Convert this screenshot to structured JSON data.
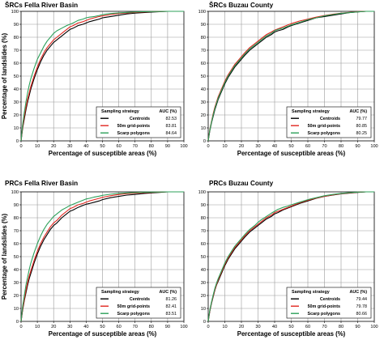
{
  "chart_data": [
    {
      "type": "line",
      "title": "ŠRCs  Fella River Basin",
      "xlabel": "Percentage of susceptible areas (%)",
      "ylabel": "Percentage of landslides (%)",
      "xlim": [
        0,
        100
      ],
      "ylim": [
        0,
        100
      ],
      "xticks": [
        "0",
        "10",
        "20",
        "30",
        "40",
        "50",
        "60",
        "70",
        "80",
        "90",
        "100"
      ],
      "yticks": [
        "0",
        "10",
        "20",
        "30",
        "40",
        "50",
        "60",
        "70",
        "80",
        "90",
        "100"
      ],
      "grid": true,
      "legend_position": "bottom-right",
      "legend_header": [
        "Sampling strategy",
        "AUC (%)"
      ],
      "series": [
        {
          "name": "Centroids",
          "auc": "82.53",
          "color": "#000000",
          "x": [
            0,
            1,
            2,
            3,
            4,
            5,
            6,
            7,
            8,
            10,
            12,
            14,
            16,
            18,
            20,
            22,
            25,
            28,
            30,
            32,
            35,
            38,
            40,
            42,
            45,
            48,
            50,
            55,
            60,
            65,
            70,
            75,
            80,
            85,
            90,
            95,
            100
          ],
          "y": [
            0,
            10,
            17,
            24,
            30,
            35,
            40,
            44,
            48,
            55,
            61,
            66,
            70,
            73,
            76,
            78,
            81,
            84,
            86,
            87,
            89,
            90,
            91,
            92,
            93,
            94,
            95,
            96,
            97,
            98,
            98.6,
            99,
            99.4,
            99.7,
            100,
            100,
            100
          ]
        },
        {
          "name": "50m grid-points",
          "auc": "83.81",
          "color": "#e0261f",
          "x": [
            0,
            1,
            2,
            3,
            4,
            5,
            6,
            7,
            8,
            10,
            12,
            14,
            16,
            18,
            20,
            22,
            25,
            28,
            30,
            32,
            35,
            38,
            40,
            42,
            45,
            48,
            50,
            55,
            60,
            65,
            70,
            75,
            80,
            85,
            90,
            95,
            100
          ],
          "y": [
            0,
            11,
            19,
            26,
            32,
            37,
            42,
            46,
            50,
            57,
            63,
            68,
            72,
            75,
            78,
            80,
            83,
            86,
            88,
            89,
            91,
            92,
            93,
            94,
            95,
            96,
            96.5,
            97.5,
            98.3,
            98.8,
            99.2,
            99.5,
            99.7,
            99.9,
            100,
            100,
            100
          ]
        },
        {
          "name": "Scarp polygons",
          "auc": "84.64",
          "color": "#2ca05a",
          "x": [
            0,
            1,
            2,
            3,
            4,
            5,
            6,
            7,
            8,
            10,
            12,
            14,
            16,
            18,
            20,
            22,
            25,
            28,
            30,
            32,
            35,
            38,
            40,
            42,
            45,
            48,
            50,
            55,
            60,
            65,
            70,
            75,
            80,
            85,
            90,
            95,
            100
          ],
          "y": [
            0,
            13,
            22,
            30,
            37,
            43,
            48,
            52,
            56,
            63,
            68,
            73,
            77,
            80,
            83,
            85,
            87,
            89,
            90,
            91,
            93,
            94,
            95,
            95.5,
            96,
            96.8,
            97.5,
            98.3,
            98.8,
            99.2,
            99.5,
            99.7,
            99.8,
            99.9,
            100,
            100,
            100
          ]
        }
      ]
    },
    {
      "type": "line",
      "title": "ŠRCs  Buzau County",
      "xlabel": "Percentage of susceptible areas (%)",
      "ylabel": "",
      "xlim": [
        0,
        100
      ],
      "ylim": [
        0,
        100
      ],
      "xticks": [
        "0",
        "10",
        "20",
        "30",
        "40",
        "50",
        "60",
        "70",
        "80",
        "90",
        "100"
      ],
      "yticks": [
        "0",
        "10",
        "20",
        "30",
        "40",
        "50",
        "60",
        "70",
        "80",
        "90",
        "100"
      ],
      "grid": true,
      "legend_position": "bottom-right",
      "legend_header": [
        "Sampling strategy",
        "AUC (%)"
      ],
      "series": [
        {
          "name": "Centroids",
          "auc": "79.77",
          "color": "#000000",
          "x": [
            0,
            1,
            2,
            3,
            4,
            5,
            6,
            8,
            10,
            12,
            14,
            16,
            18,
            20,
            22,
            25,
            28,
            30,
            32,
            35,
            38,
            40,
            42,
            45,
            48,
            50,
            55,
            60,
            65,
            70,
            75,
            80,
            85,
            90,
            95,
            100
          ],
          "y": [
            0,
            8,
            14,
            19,
            24,
            28,
            32,
            38,
            44,
            49,
            53,
            57,
            60,
            63,
            66,
            70,
            73,
            75,
            77,
            80,
            82,
            84,
            85,
            86,
            88,
            89,
            91,
            93,
            95,
            96,
            97,
            98,
            99,
            99.6,
            100,
            100
          ]
        },
        {
          "name": "50m grid-points",
          "auc": "80.85",
          "color": "#e0261f",
          "x": [
            0,
            1,
            2,
            3,
            4,
            5,
            6,
            8,
            10,
            12,
            14,
            16,
            18,
            20,
            22,
            25,
            28,
            30,
            32,
            35,
            38,
            40,
            42,
            45,
            48,
            50,
            55,
            60,
            65,
            70,
            75,
            80,
            85,
            90,
            95,
            100
          ],
          "y": [
            0,
            9,
            15,
            21,
            26,
            30,
            34,
            40,
            46,
            51,
            55,
            59,
            62,
            65,
            68,
            72,
            75,
            77,
            79,
            82,
            84,
            85.5,
            86.5,
            88,
            89.5,
            90.5,
            92.5,
            94,
            95.5,
            96.8,
            97.8,
            98.6,
            99.2,
            99.7,
            100,
            100
          ]
        },
        {
          "name": "Scarp polygons",
          "auc": "80.25",
          "color": "#2ca05a",
          "x": [
            0,
            1,
            2,
            3,
            4,
            5,
            6,
            8,
            10,
            12,
            14,
            16,
            18,
            20,
            22,
            25,
            28,
            30,
            32,
            35,
            38,
            40,
            42,
            45,
            48,
            50,
            55,
            60,
            65,
            70,
            75,
            80,
            85,
            90,
            95,
            100
          ],
          "y": [
            0,
            8.5,
            14.5,
            20,
            25,
            29,
            33,
            39,
            45,
            50,
            54,
            58,
            61,
            64,
            67,
            71,
            74,
            76,
            78,
            81,
            83,
            85,
            86,
            87,
            88.5,
            89.5,
            91.5,
            93.5,
            95,
            96.5,
            97.5,
            98.5,
            99,
            99.6,
            100,
            100
          ]
        }
      ]
    },
    {
      "type": "line",
      "title": "PRCs  Fella River Basin",
      "xlabel": "Percentage of susceptible areas (%)",
      "ylabel": "Percentage of landslides (%)",
      "xlim": [
        0,
        100
      ],
      "ylim": [
        0,
        100
      ],
      "xticks": [
        "0",
        "10",
        "20",
        "30",
        "40",
        "50",
        "60",
        "70",
        "80",
        "90",
        "100"
      ],
      "yticks": [
        "0",
        "10",
        "20",
        "30",
        "40",
        "50",
        "60",
        "70",
        "80",
        "90",
        "100"
      ],
      "grid": true,
      "legend_position": "bottom-right",
      "legend_header": [
        "Sampling strategy",
        "AUC (%)"
      ],
      "series": [
        {
          "name": "Centroids",
          "auc": "81.26",
          "color": "#000000",
          "x": [
            0,
            1,
            2,
            3,
            4,
            5,
            6,
            7,
            8,
            10,
            12,
            14,
            16,
            18,
            20,
            22,
            25,
            28,
            30,
            32,
            35,
            38,
            40,
            42,
            45,
            48,
            50,
            55,
            60,
            65,
            70,
            75,
            80,
            85,
            90,
            95,
            100
          ],
          "y": [
            0,
            9,
            16,
            22,
            28,
            33,
            37,
            41,
            45,
            52,
            58,
            63,
            67,
            71,
            74,
            76,
            80,
            83,
            85,
            86,
            88,
            89.5,
            90.5,
            91,
            92,
            93,
            94,
            95.5,
            96.5,
            97.5,
            98,
            98.7,
            99.2,
            99.6,
            100,
            100,
            100
          ]
        },
        {
          "name": "50m grid-points",
          "auc": "82.41",
          "color": "#e0261f",
          "x": [
            0,
            1,
            2,
            3,
            4,
            5,
            6,
            7,
            8,
            10,
            12,
            14,
            16,
            18,
            20,
            22,
            25,
            28,
            30,
            32,
            35,
            38,
            40,
            42,
            45,
            48,
            50,
            55,
            60,
            65,
            70,
            75,
            80,
            85,
            90,
            95,
            100
          ],
          "y": [
            0,
            10,
            17,
            24,
            30,
            35,
            39,
            43,
            47,
            54,
            60,
            65,
            69,
            73,
            76,
            78,
            82,
            85,
            87,
            88,
            90,
            91,
            92,
            93,
            94,
            95,
            95.8,
            97,
            98,
            98.6,
            99,
            99.4,
            99.6,
            99.8,
            100,
            100,
            100
          ]
        },
        {
          "name": "Scarp polygons",
          "auc": "83.51",
          "color": "#2ca05a",
          "x": [
            0,
            1,
            2,
            3,
            4,
            5,
            6,
            7,
            8,
            10,
            12,
            14,
            16,
            18,
            20,
            22,
            25,
            28,
            30,
            32,
            35,
            38,
            40,
            42,
            45,
            48,
            50,
            55,
            60,
            65,
            70,
            75,
            80,
            85,
            90,
            95,
            100
          ],
          "y": [
            0,
            12,
            20,
            28,
            34,
            40,
            45,
            49,
            53,
            60,
            66,
            71,
            75,
            78,
            81,
            83,
            86,
            88,
            89.5,
            90.5,
            92,
            93.5,
            94.5,
            95,
            96,
            96.7,
            97.3,
            98.2,
            98.8,
            99.2,
            99.5,
            99.7,
            99.8,
            99.9,
            100,
            100,
            100
          ]
        }
      ]
    },
    {
      "type": "line",
      "title": "PRCs  Buzau County",
      "xlabel": "Percentage of susceptible areas (%)",
      "ylabel": "",
      "xlim": [
        0,
        100
      ],
      "ylim": [
        0,
        100
      ],
      "xticks": [
        "0",
        "10",
        "20",
        "30",
        "40",
        "50",
        "60",
        "70",
        "80",
        "90",
        "100"
      ],
      "yticks": [
        "0",
        "10",
        "20",
        "30",
        "40",
        "50",
        "60",
        "70",
        "80",
        "90",
        "100"
      ],
      "grid": true,
      "legend_position": "bottom-right",
      "legend_header": [
        "Sampling strategy",
        "AUC (%)"
      ],
      "series": [
        {
          "name": "Centroids",
          "auc": "79.44",
          "color": "#000000",
          "x": [
            0,
            1,
            2,
            3,
            4,
            5,
            6,
            8,
            10,
            12,
            14,
            16,
            18,
            20,
            22,
            25,
            28,
            30,
            32,
            35,
            38,
            40,
            42,
            45,
            48,
            50,
            55,
            60,
            65,
            70,
            75,
            80,
            85,
            90,
            95,
            100
          ],
          "y": [
            0,
            8,
            14,
            19,
            24,
            28,
            31,
            37,
            43,
            48,
            52,
            56,
            59,
            62,
            65,
            69,
            72,
            74,
            76,
            79,
            81,
            83,
            84,
            86,
            87.5,
            88.5,
            91,
            93,
            95,
            96.5,
            97.5,
            98.5,
            99,
            99.6,
            100,
            100
          ]
        },
        {
          "name": "50m grid-points",
          "auc": "79.78",
          "color": "#e0261f",
          "x": [
            0,
            1,
            2,
            3,
            4,
            5,
            6,
            8,
            10,
            12,
            14,
            16,
            18,
            20,
            22,
            25,
            28,
            30,
            32,
            35,
            38,
            40,
            42,
            45,
            48,
            50,
            55,
            60,
            65,
            70,
            75,
            80,
            85,
            90,
            95,
            100
          ],
          "y": [
            0,
            8.5,
            14.5,
            19.5,
            24.5,
            28.5,
            32,
            38,
            44,
            49,
            53,
            57,
            60,
            63,
            66,
            70,
            73,
            75,
            77,
            80,
            82,
            84,
            85,
            86.5,
            88,
            89,
            91.5,
            93.5,
            95.2,
            96.6,
            97.7,
            98.6,
            99.2,
            99.7,
            100,
            100
          ]
        },
        {
          "name": "Scarp polygons",
          "auc": "80.66",
          "color": "#2ca05a",
          "x": [
            0,
            1,
            2,
            3,
            4,
            5,
            6,
            8,
            10,
            12,
            14,
            16,
            18,
            20,
            22,
            25,
            28,
            30,
            32,
            35,
            38,
            40,
            42,
            45,
            48,
            50,
            55,
            60,
            65,
            70,
            75,
            80,
            85,
            90,
            95,
            100
          ],
          "y": [
            0,
            9,
            15,
            20.5,
            25.5,
            29.5,
            33,
            39,
            45,
            50,
            54,
            58,
            61,
            64,
            67,
            71,
            74,
            76.5,
            78.5,
            81,
            83.5,
            85,
            86.5,
            88,
            89,
            90,
            92,
            94,
            95.5,
            97,
            98,
            98.8,
            99.4,
            99.8,
            100,
            100
          ]
        }
      ]
    }
  ]
}
